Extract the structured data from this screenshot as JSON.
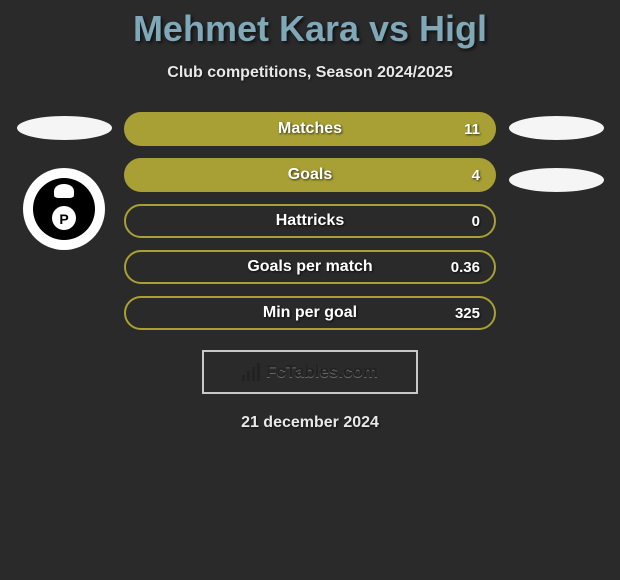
{
  "colors": {
    "background": "#2a2a2a",
    "title": "#7fa8b8",
    "text_light": "#e8e8e8",
    "ellipse": "#f5f5f5",
    "brand_border": "#c8c8c8",
    "stat_text": "#ffffff"
  },
  "title": "Mehmet Kara vs Higl",
  "subtitle": "Club competitions, Season 2024/2025",
  "date": "21 december 2024",
  "brand": "FcTables.com",
  "left_club": "Preussen Münster",
  "stat_style": {
    "height": 34,
    "border_radius": 17,
    "border_width": 2,
    "gap": 12
  },
  "stats": [
    {
      "label": "Matches",
      "value": "11",
      "fill": "#a8a035",
      "border": "#a8a035"
    },
    {
      "label": "Goals",
      "value": "4",
      "fill": "#a8a035",
      "border": "#a8a035"
    },
    {
      "label": "Hattricks",
      "value": "0",
      "fill": "#2a2a2a",
      "border": "#a8a035"
    },
    {
      "label": "Goals per match",
      "value": "0.36",
      "fill": "#2a2a2a",
      "border": "#a8a035"
    },
    {
      "label": "Min per goal",
      "value": "325",
      "fill": "#2a2a2a",
      "border": "#a8a035"
    }
  ]
}
